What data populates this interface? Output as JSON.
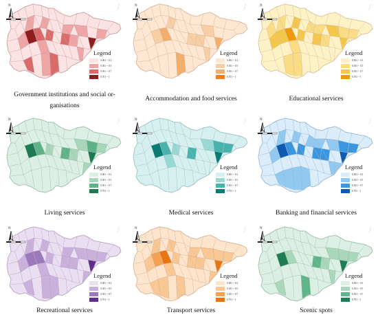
{
  "legend_title": "Legend",
  "classes": [
    "0.001 ~ 0.3",
    "0.301 ~ 0.5",
    "0.501 ~ 0.7",
    "0.701 ~ 1"
  ],
  "compass_label": "N",
  "panels": [
    {
      "title": "Government institutions and social or-",
      "title_line2": "ganisations",
      "palette": [
        "#fbe3e3",
        "#efa5a5",
        "#d96b6b",
        "#8e1d1d"
      ],
      "outline": "#caa1a1"
    },
    {
      "title": "Accommodation and food services",
      "title_line2": "",
      "palette": [
        "#fde7d2",
        "#f8cfa5",
        "#f3ae6c",
        "#ea7f24"
      ],
      "outline": "#d8b79b"
    },
    {
      "title": "Educational services",
      "title_line2": "",
      "palette": [
        "#fdf1c5",
        "#fadc84",
        "#f5c64c",
        "#ef9a0b"
      ],
      "outline": "#d6c49a"
    },
    {
      "title": "Living services",
      "title_line2": "",
      "palette": [
        "#dcefe4",
        "#a9d6bb",
        "#5fb188",
        "#1e7a52"
      ],
      "outline": "#9cbfaa"
    },
    {
      "title": "Medical services",
      "title_line2": "",
      "palette": [
        "#d7f0ef",
        "#9ad8d4",
        "#48b2ad",
        "#0a7a75"
      ],
      "outline": "#95c4c1"
    },
    {
      "title": "Banking and financial services",
      "title_line2": "",
      "palette": [
        "#dbedfa",
        "#91c9f1",
        "#3b96e0",
        "#0d5aae"
      ],
      "outline": "#98b9d4"
    },
    {
      "title": "Recreational services",
      "title_line2": "",
      "palette": [
        "#eadff1",
        "#c9b1dc",
        "#9c78bd",
        "#5e2f86"
      ],
      "outline": "#b8a5c8"
    },
    {
      "title": "Transport services",
      "title_line2": "",
      "palette": [
        "#fde5cd",
        "#f8c793",
        "#f2a251",
        "#e87512"
      ],
      "outline": "#d8b394"
    },
    {
      "title": "Scenic spots",
      "title_line2": "",
      "palette": [
        "#dcefe4",
        "#a8d7bc",
        "#5fb48a",
        "#1f7d56"
      ],
      "outline": "#9cbfaa"
    }
  ]
}
